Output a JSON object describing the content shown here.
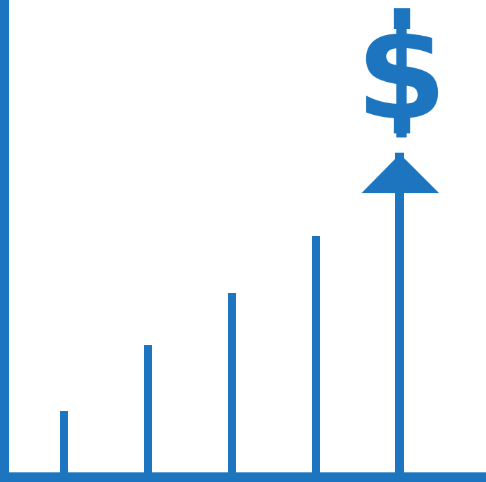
{
  "illustration": {
    "subject": "growth-chart-icon",
    "color": "#1c75be",
    "symbol": "$",
    "bar_levels": [
      0.13,
      0.27,
      0.38,
      0.5
    ],
    "arrow_level": 0.7
  }
}
